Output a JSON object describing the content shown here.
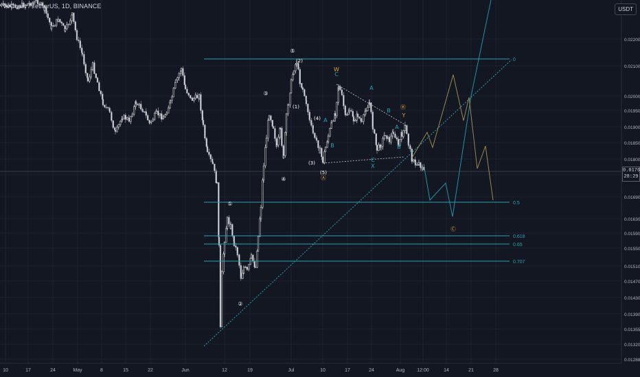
{
  "header": {
    "title": "VeChain / TetherUS, 1D, BINANCE",
    "currency": "USDT"
  },
  "last_price": {
    "value": "0.01764",
    "countdown": "28:29"
  },
  "chart_data": {
    "type": "candlestick",
    "symbol": "VeChain / TetherUS",
    "interval": "1D",
    "exchange": "BINANCE",
    "y_axis": {
      "ticks": [
        "0.02200",
        "0.02100",
        "0.02000",
        "0.01950",
        "0.01900",
        "0.01850",
        "0.01800",
        "0.01750",
        "0.01690",
        "0.01630",
        "0.01590",
        "0.01550",
        "0.01510",
        "0.01470",
        "0.01430",
        "0.01390",
        "0.01355",
        "0.01320",
        "0.01288"
      ]
    },
    "x_axis": {
      "ticks": [
        "10",
        "17",
        "24",
        "May",
        "8",
        "15",
        "22",
        "Jun",
        "12",
        "19",
        "Jul",
        "10",
        "17",
        "24",
        "Aug",
        "12:00",
        "14",
        "21",
        "28"
      ]
    },
    "fib_levels": [
      {
        "label": "0"
      },
      {
        "label": "0.5"
      },
      {
        "label": "0.618"
      },
      {
        "label": "0.65"
      },
      {
        "label": "0.707"
      }
    ],
    "wave_labels": [
      "①",
      "②",
      "③",
      "④",
      "⑤",
      "(1)",
      "(2)",
      "(3)",
      "(4)",
      "(5)",
      "Ⓐ",
      "Ⓑ",
      "Ⓒ",
      "W",
      "C",
      "X",
      "A",
      "B",
      "A",
      "B",
      "C",
      "A",
      "B",
      "Y"
    ]
  }
}
